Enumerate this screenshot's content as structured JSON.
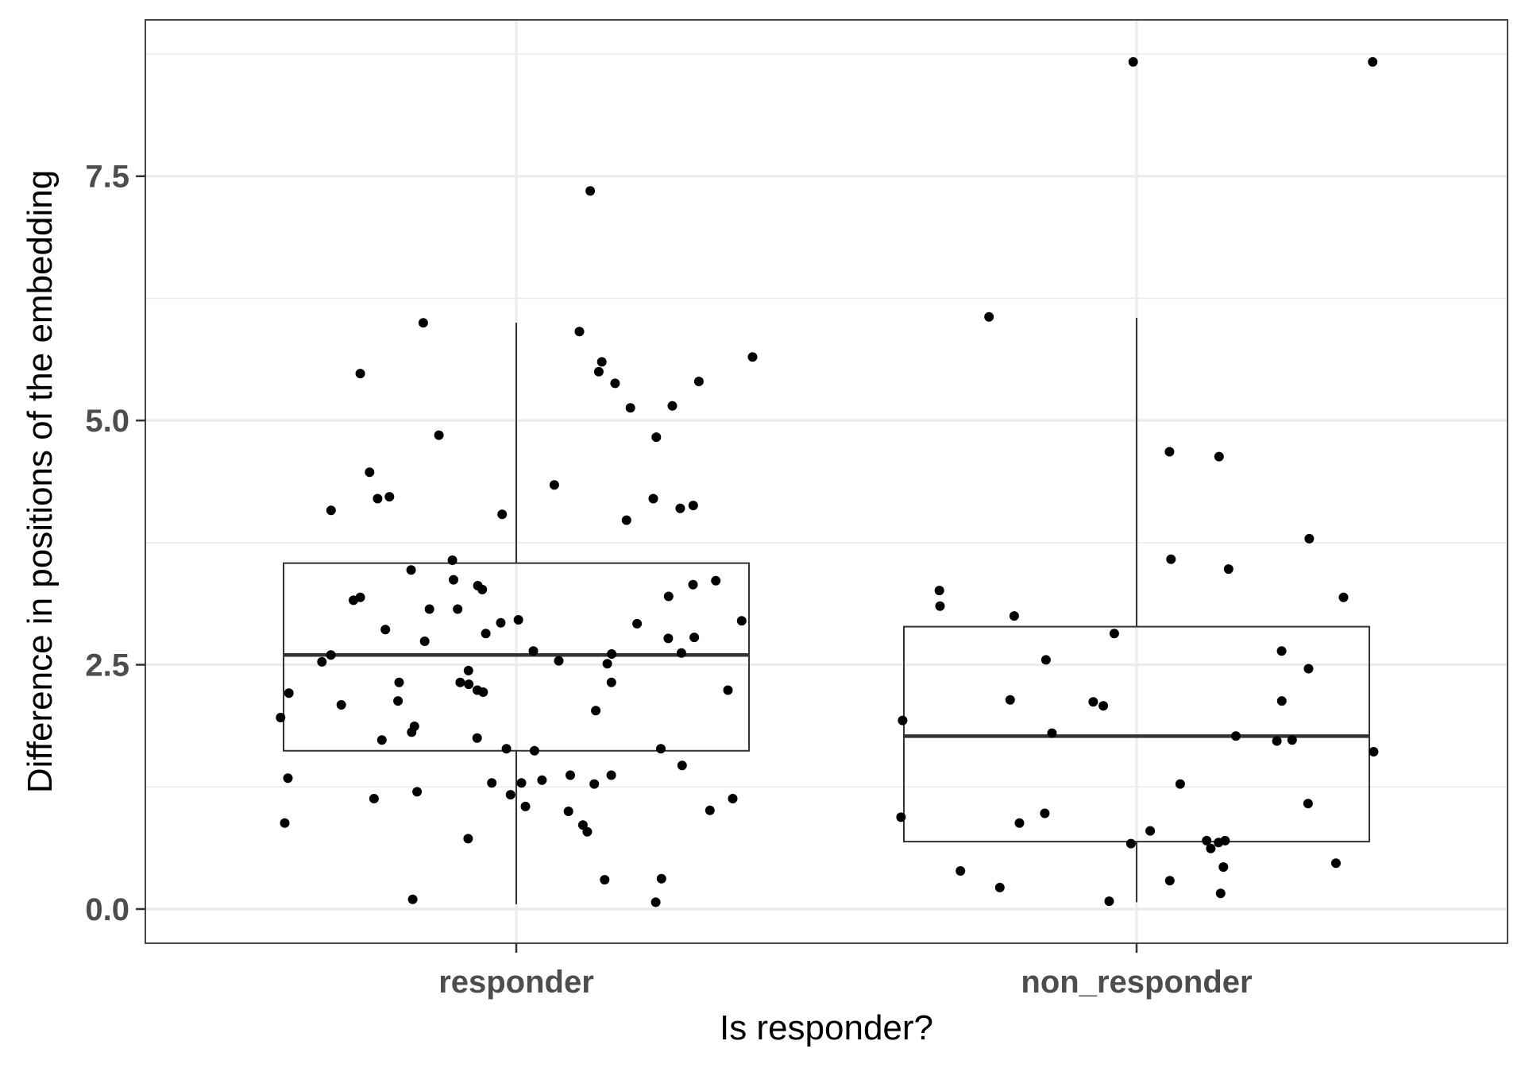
{
  "chart_data": {
    "type": "box",
    "xlabel": "Is responder?",
    "ylabel": "Difference in positions of the embedding",
    "categories": [
      "responder",
      "non_responder"
    ],
    "y_ticks": [
      0.0,
      2.5,
      5.0,
      7.5
    ],
    "y_tick_labels": [
      "0.0",
      "2.5",
      "5.0",
      "7.5"
    ],
    "ylim": [
      -0.35,
      9.1
    ],
    "grid": true,
    "theme": "bw",
    "boxes": [
      {
        "category": "responder",
        "lower_whisker": 0.05,
        "q1": 1.62,
        "median": 2.6,
        "q3": 3.54,
        "upper_whisker": 6.0
      },
      {
        "category": "non_responder",
        "lower_whisker": 0.07,
        "q1": 0.69,
        "median": 1.77,
        "q3": 2.89,
        "upper_whisker": 6.05
      }
    ],
    "points": [
      {
        "category": "responder",
        "values": [
          7.35,
          6.0,
          5.91,
          5.65,
          5.6,
          5.5,
          5.48,
          5.4,
          5.38,
          5.15,
          5.13,
          4.85,
          4.83,
          4.47,
          4.34,
          4.22,
          4.2,
          4.2,
          4.13,
          4.1,
          4.08,
          4.04,
          3.98,
          3.57,
          3.47,
          3.37,
          3.36,
          3.32,
          3.31,
          3.27,
          3.2,
          3.19,
          3.16,
          3.07,
          3.07,
          2.96,
          2.95,
          2.93,
          2.92,
          2.86,
          2.82,
          2.78,
          2.77,
          2.74,
          2.64,
          2.62,
          2.61,
          2.6,
          2.54,
          2.53,
          2.51,
          2.44,
          2.32,
          2.32,
          2.32,
          2.3,
          2.24,
          2.24,
          2.22,
          2.21,
          2.13,
          2.09,
          2.03,
          1.96,
          1.87,
          1.81,
          1.75,
          1.73,
          1.64,
          1.64,
          1.62,
          1.47,
          1.37,
          1.37,
          1.34,
          1.32,
          1.29,
          1.29,
          1.28,
          1.2,
          1.17,
          1.13,
          1.13,
          1.05,
          1.01,
          1.0,
          0.88,
          0.86,
          0.79,
          0.72,
          0.31,
          0.3,
          0.1,
          0.07
        ]
      },
      {
        "category": "non_responder",
        "values": [
          8.67,
          8.67,
          6.06,
          4.68,
          4.63,
          3.79,
          3.58,
          3.48,
          3.26,
          3.19,
          3.1,
          3.0,
          2.82,
          2.64,
          2.55,
          2.46,
          2.14,
          2.13,
          2.12,
          2.08,
          1.93,
          1.8,
          1.77,
          1.73,
          1.72,
          1.61,
          1.28,
          1.08,
          0.98,
          0.94,
          0.88,
          0.8,
          0.7,
          0.7,
          0.68,
          0.67,
          0.62,
          0.47,
          0.43,
          0.39,
          0.29,
          0.22,
          0.16,
          0.08
        ]
      }
    ]
  }
}
